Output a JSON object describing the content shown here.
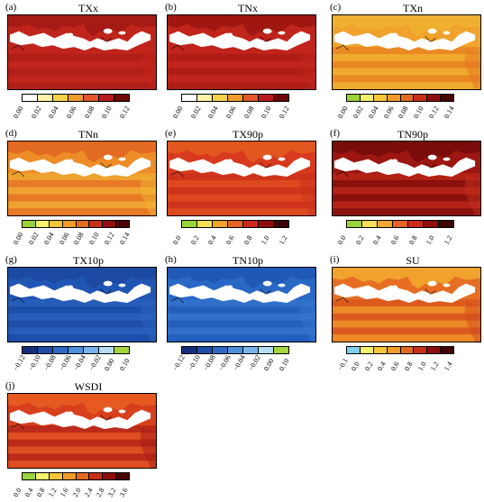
{
  "panels": [
    {
      "tag": "(a)",
      "title": "TXx",
      "colors": [
        "#ffffff",
        "#fbf3a7",
        "#f7d34a",
        "#f09a2e",
        "#e2562a",
        "#b81b1b",
        "#6e0707"
      ],
      "ticks": [
        "0.00",
        "0.02",
        "0.04",
        "0.06",
        "0.08",
        "0.10",
        "0.12"
      ],
      "base": "#c0251c",
      "lat": [
        "#c0251c",
        "#a61a15"
      ]
    },
    {
      "tag": "(b)",
      "title": "TNx",
      "colors": [
        "#ffffff",
        "#fbf3a7",
        "#f7d34a",
        "#f09a2e",
        "#e2562a",
        "#b81b1b",
        "#6e0707"
      ],
      "ticks": [
        "0.00",
        "0.02",
        "0.04",
        "0.06",
        "0.08",
        "0.10",
        "0.12"
      ],
      "base": "#c0251c",
      "lat": [
        "#c0251c",
        "#a01712"
      ]
    },
    {
      "tag": "(c)",
      "title": "TXn",
      "colors": [
        "#9ad33a",
        "#f5f06e",
        "#f7c63a",
        "#f29b2a",
        "#e36a22",
        "#c63018",
        "#8e0e0e",
        "#4a0505"
      ],
      "ticks": [
        "0.00",
        "0.02",
        "0.04",
        "0.06",
        "0.08",
        "0.10",
        "0.12",
        "0.14"
      ],
      "base": "#f0a22c",
      "lat": [
        "#e6731f",
        "#f0b02f"
      ]
    },
    {
      "tag": "(d)",
      "title": "TNn",
      "colors": [
        "#9ad33a",
        "#f5f06e",
        "#f7c63a",
        "#f29b2a",
        "#e36a22",
        "#c63018",
        "#8e0e0e",
        "#4a0505"
      ],
      "ticks": [
        "0.00",
        "0.02",
        "0.04",
        "0.06",
        "0.08",
        "0.10",
        "0.12",
        "0.14"
      ],
      "base": "#ee8d28",
      "lat": [
        "#f0b534",
        "#e36a22"
      ]
    },
    {
      "tag": "(e)",
      "title": "TX90p",
      "colors": [
        "#9ad33a",
        "#f5e05a",
        "#f2a52b",
        "#e46423",
        "#cc2a1a",
        "#8e0e0e",
        "#3e0303"
      ],
      "ticks": [
        "0.0",
        "0.2",
        "0.4",
        "0.6",
        "0.8",
        "1.0",
        "1.2"
      ],
      "base": "#d83a1d",
      "lat": [
        "#c6301a",
        "#e2561f"
      ]
    },
    {
      "tag": "(f)",
      "title": "TN90p",
      "colors": [
        "#9ad33a",
        "#f5e05a",
        "#f2a52b",
        "#e46423",
        "#cc2a1a",
        "#8e0e0e",
        "#3e0303"
      ],
      "ticks": [
        "0.0",
        "0.2",
        "0.4",
        "0.6",
        "0.8",
        "1.0",
        "1.2"
      ],
      "base": "#9c1612",
      "lat": [
        "#c62d1a",
        "#7a0c0a"
      ]
    },
    {
      "tag": "(g)",
      "title": "TX10p",
      "colors": [
        "#15307a",
        "#1e4da6",
        "#2e69c6",
        "#4c8fdc",
        "#78b4ea",
        "#b6dcf4",
        "#a6d63c"
      ],
      "ticks": [
        "−0.12",
        "−0.10",
        "−0.08",
        "−0.06",
        "−0.04",
        "−0.02",
        "0.00",
        "0.10"
      ],
      "base": "#2056b3",
      "lat": [
        "#2b63c0",
        "#1c4aa2"
      ]
    },
    {
      "tag": "(h)",
      "title": "TN10p",
      "colors": [
        "#15307a",
        "#1e4da6",
        "#2e69c6",
        "#4c8fdc",
        "#78b4ea",
        "#b6dcf4",
        "#a6d63c"
      ],
      "ticks": [
        "−0.12",
        "−0.10",
        "−0.08",
        "−0.06",
        "−0.04",
        "−0.02",
        "0.00",
        "0.10"
      ],
      "base": "#2a68c6",
      "lat": [
        "#3576d0",
        "#2058b8"
      ]
    },
    {
      "tag": "(i)",
      "title": "SU",
      "colors": [
        "#7fd0ee",
        "#f5f06e",
        "#f7c63a",
        "#f29b2a",
        "#e36a22",
        "#c63018",
        "#8e0e0e",
        "#3e0303"
      ],
      "ticks": [
        "−0.1",
        "0.0",
        "0.2",
        "0.4",
        "0.6",
        "0.8",
        "1.0",
        "1.2",
        "1.4"
      ],
      "base": "#e66e22",
      "lat": [
        "#d44a1c",
        "#f0a22c"
      ]
    },
    {
      "tag": "(j)",
      "title": "WSDI",
      "colors": [
        "#9ad33a",
        "#f5f06e",
        "#f7c63a",
        "#f29b2a",
        "#e36a22",
        "#c63018",
        "#8e0e0e",
        "#4a0505"
      ],
      "ticks": [
        "0.0",
        "0.4",
        "0.8",
        "1.2",
        "1.6",
        "2.0",
        "2.4",
        "2.8",
        "3.2",
        "3.6"
      ],
      "base": "#d8401d",
      "lat": [
        "#a61a15",
        "#e65a22"
      ]
    }
  ]
}
